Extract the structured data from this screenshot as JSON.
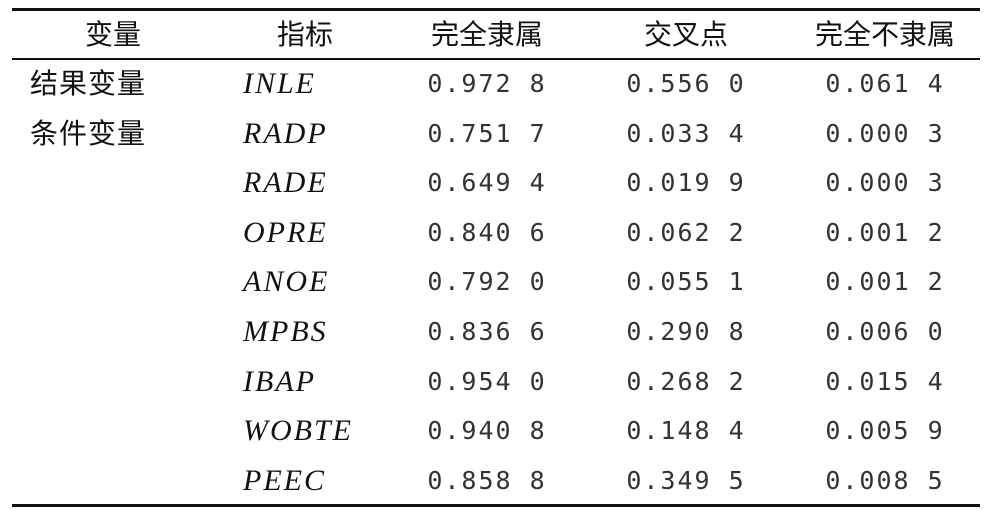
{
  "table": {
    "header": [
      "变量",
      "指标",
      "完全隶属",
      "交叉点",
      "完全不隶属"
    ],
    "rows": [
      {
        "group": "结果变量",
        "indicator": "INLE",
        "cells": [
          "0.972 8",
          "0.556 0",
          "0.061 4"
        ]
      },
      {
        "group": "条件变量",
        "indicator": "RADP",
        "cells": [
          "0.751 7",
          "0.033 4",
          "0.000 3"
        ]
      },
      {
        "indicator": "RADE",
        "cells": [
          "0.649 4",
          "0.019 9",
          "0.000 3"
        ]
      },
      {
        "indicator": "OPRE",
        "cells": [
          "0.840 6",
          "0.062 2",
          "0.001 2"
        ]
      },
      {
        "indicator": "ANOE",
        "cells": [
          "0.792 0",
          "0.055 1",
          "0.001 2"
        ]
      },
      {
        "indicator": "MPBS",
        "cells": [
          "0.836 6",
          "0.290 8",
          "0.006 0"
        ]
      },
      {
        "indicator": "IBAP",
        "cells": [
          "0.954 0",
          "0.268 2",
          "0.015 4"
        ]
      },
      {
        "indicator": "WOBTE",
        "cells": [
          "0.940 8",
          "0.148 4",
          "0.005 9"
        ]
      },
      {
        "indicator": "PEEC",
        "cells": [
          "0.858 8",
          "0.349 5",
          "0.008 5"
        ]
      }
    ]
  }
}
